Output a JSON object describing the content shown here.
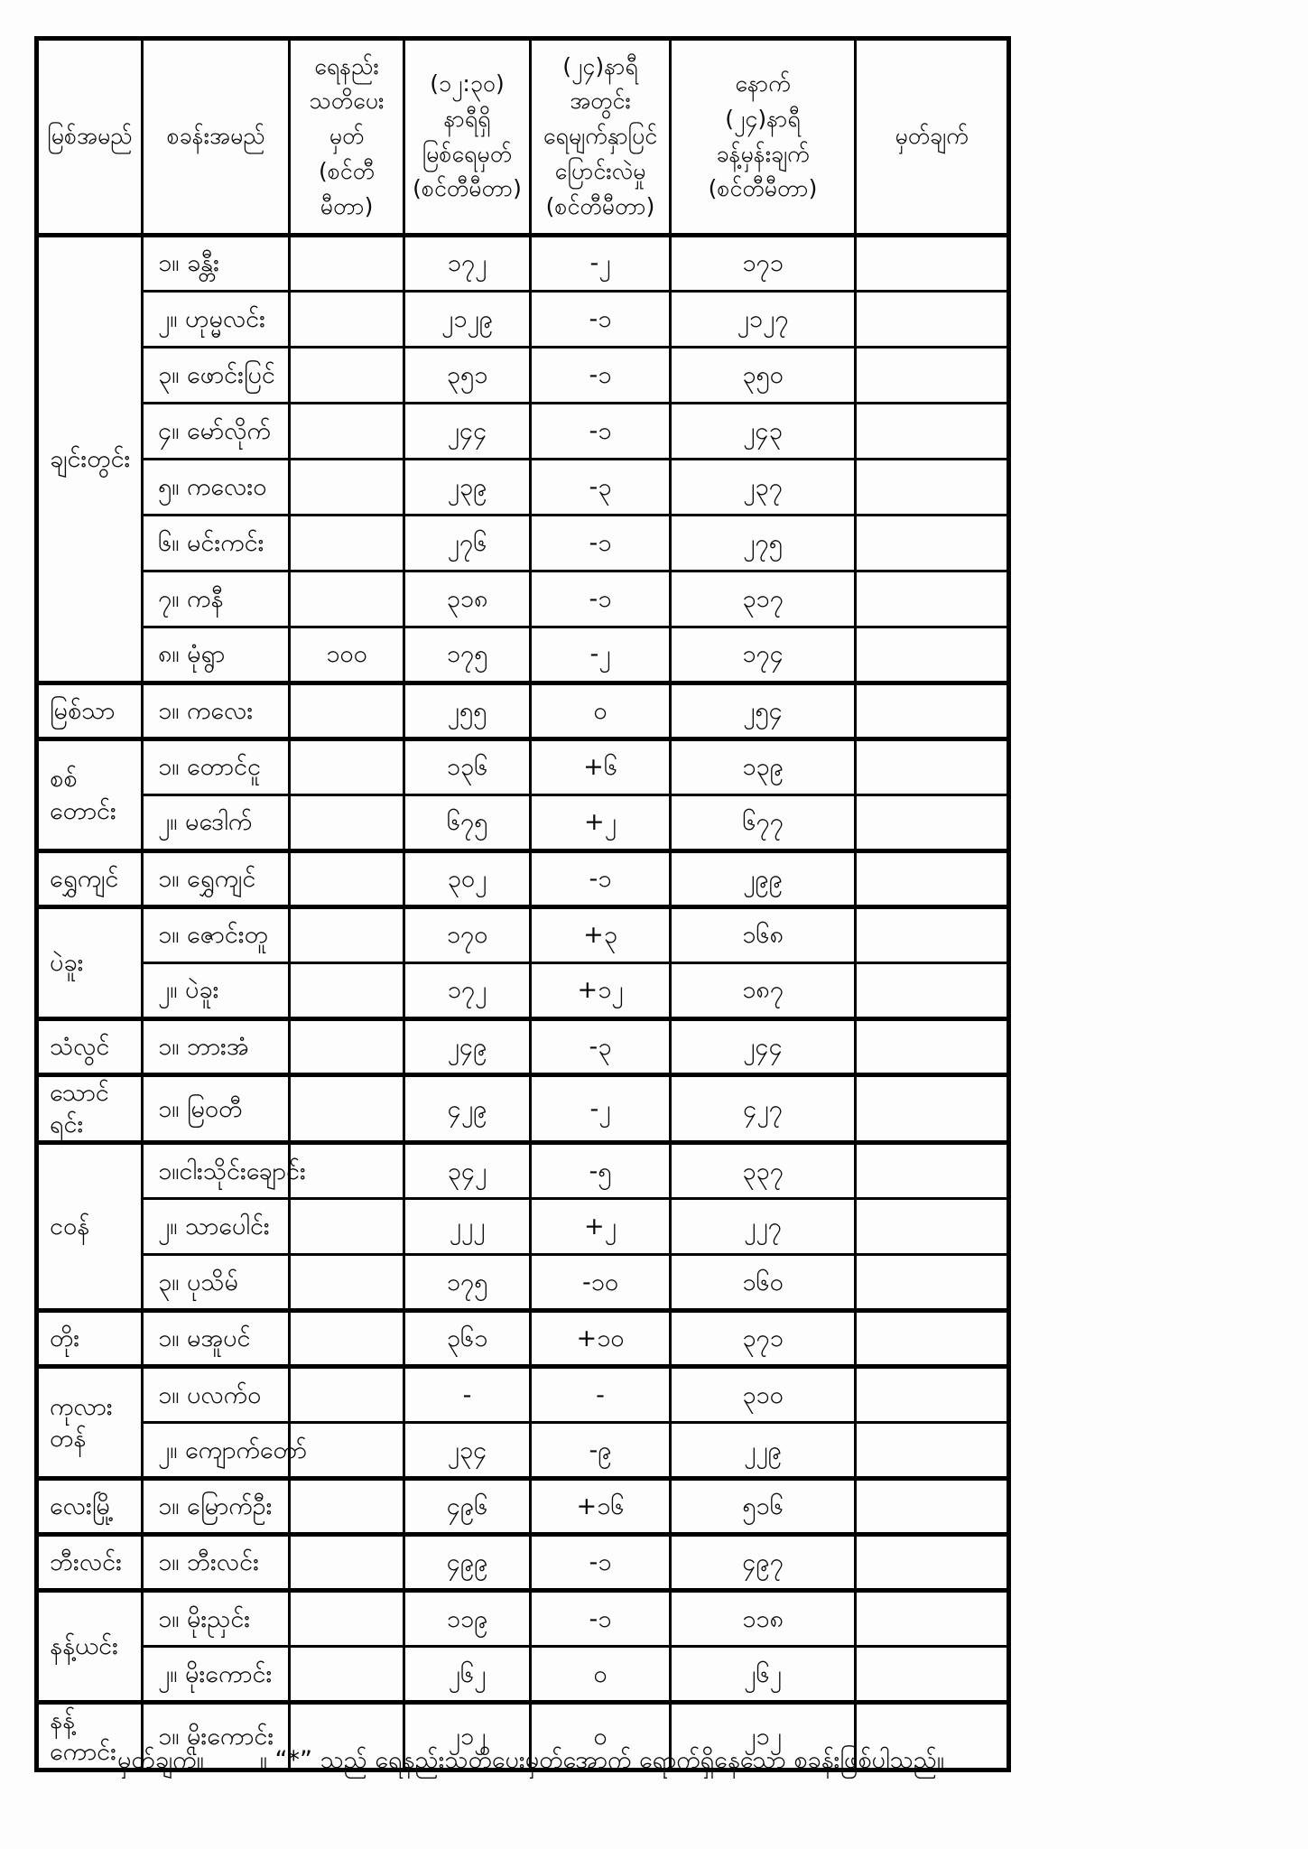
{
  "table": {
    "headers": {
      "river": "မြစ်အမည်",
      "station": "စခန်းအမည်",
      "warning": "ရေနည်း\nသတိပေးမှတ်\n(စင်တီမီတာ)",
      "level": "(၁၂:၃၀)\nနာရီရှိ\nမြစ်ရေမှတ်\n(စင်တီမီတာ)",
      "change": "(၂၄)နာရီအတွင်း\nရေမျက်နှာပြင်\nပြောင်းလဲမှု\n(စင်တီမီတာ)",
      "forecast": "နောက်\n(၂၄)နာရီ\nခန့်မှန်းချက်\n(စင်တီမီတာ)",
      "remark": "မှတ်ချက်"
    },
    "groups": [
      {
        "river": "ချင်းတွင်း",
        "stations": [
          {
            "name": "၁။ ခန္တီး",
            "warning": "",
            "level": "၁၇၂",
            "change": "-၂",
            "forecast": "၁၇၁",
            "remark": ""
          },
          {
            "name": "၂။ ဟုမ္မလင်း",
            "warning": "",
            "level": "၂၁၂၉",
            "change": "-၁",
            "forecast": "၂၁၂၇",
            "remark": ""
          },
          {
            "name": "၃။ ဖောင်းပြင်",
            "warning": "",
            "level": "၃၅၁",
            "change": "-၁",
            "forecast": "၃၅၀",
            "remark": ""
          },
          {
            "name": "၄။ မော်လိုက်",
            "warning": "",
            "level": "၂၄၄",
            "change": "-၁",
            "forecast": "၂၄၃",
            "remark": ""
          },
          {
            "name": "၅။ ကလေးဝ",
            "warning": "",
            "level": "၂၃၉",
            "change": "-၃",
            "forecast": "၂၃၇",
            "remark": ""
          },
          {
            "name": "၆။ မင်းကင်း",
            "warning": "",
            "level": "၂၇၆",
            "change": "-၁",
            "forecast": "၂၇၅",
            "remark": ""
          },
          {
            "name": "၇။ ကနီ",
            "warning": "",
            "level": "၃၁၈",
            "change": "-၁",
            "forecast": "၃၁၇",
            "remark": ""
          },
          {
            "name": "၈။ မုံရွာ",
            "warning": "၁၀၀",
            "level": "၁၇၅",
            "change": "-၂",
            "forecast": "၁၇၄",
            "remark": ""
          }
        ]
      },
      {
        "river": "မြစ်သာ",
        "stations": [
          {
            "name": "၁။ ကလေး",
            "warning": "",
            "level": "၂၅၅",
            "change": "၀",
            "forecast": "၂၅၄",
            "remark": ""
          }
        ]
      },
      {
        "river": "စစ်တောင်း",
        "stations": [
          {
            "name": "၁။ တောင်ငူ",
            "warning": "",
            "level": "၁၃၆",
            "change": "+၆",
            "forecast": "၁၃၉",
            "remark": ""
          },
          {
            "name": "၂။ မဒေါက်",
            "warning": "",
            "level": "၆၇၅",
            "change": "+၂",
            "forecast": "၆၇၇",
            "remark": ""
          }
        ]
      },
      {
        "river": "ရွှေကျင်",
        "stations": [
          {
            "name": "၁။ ရွှေကျင်",
            "warning": "",
            "level": "၃၀၂",
            "change": "-၁",
            "forecast": "၂၉၉",
            "remark": ""
          }
        ]
      },
      {
        "river": "ပဲခူး",
        "stations": [
          {
            "name": "၁။ ဇောင်းတူ",
            "warning": "",
            "level": "၁၇၀",
            "change": "+၃",
            "forecast": "၁၆၈",
            "remark": ""
          },
          {
            "name": "၂။ ပဲခူး",
            "warning": "",
            "level": "၁၇၂",
            "change": "+၁၂",
            "forecast": "၁၈၇",
            "remark": ""
          }
        ]
      },
      {
        "river": "သံလွင်",
        "stations": [
          {
            "name": "၁။ ဘားအံ",
            "warning": "",
            "level": "၂၄၉",
            "change": "-၃",
            "forecast": "၂၄၄",
            "remark": ""
          }
        ]
      },
      {
        "river": "သောင်ရင်း",
        "stations": [
          {
            "name": "၁။ မြဝတီ",
            "warning": "",
            "level": "၄၂၉",
            "change": "-၂",
            "forecast": "၄၂၇",
            "remark": ""
          }
        ]
      },
      {
        "river": "ငဝန်",
        "stations": [
          {
            "name": "၁။ငါးသိုင်းချောင်း",
            "warning": "",
            "level": "၃၄၂",
            "change": "-၅",
            "forecast": "၃၃၇",
            "remark": ""
          },
          {
            "name": "၂။ သာပေါင်း",
            "warning": "",
            "level": "၂၂၂",
            "change": "+၂",
            "forecast": "၂၂၇",
            "remark": ""
          },
          {
            "name": "၃။ ပုသိမ်",
            "warning": "",
            "level": "၁၇၅",
            "change": "-၁၀",
            "forecast": "၁၆၀",
            "remark": ""
          }
        ]
      },
      {
        "river": "တိုး",
        "stations": [
          {
            "name": "၁။ မအူပင်",
            "warning": "",
            "level": "၃၆၁",
            "change": "+၁၀",
            "forecast": "၃၇၁",
            "remark": ""
          }
        ]
      },
      {
        "river": "ကုလားတန်",
        "stations": [
          {
            "name": "၁။ ပလက်ဝ",
            "warning": "",
            "level": "-",
            "change": "-",
            "forecast": "၃၁၀",
            "remark": ""
          },
          {
            "name": "၂။ ကျောက်တော်",
            "warning": "",
            "level": "၂၃၄",
            "change": "-၉",
            "forecast": "၂၂၉",
            "remark": ""
          }
        ]
      },
      {
        "river": "လေးမြို့",
        "stations": [
          {
            "name": "၁။ မြောက်ဦး",
            "warning": "",
            "level": "၄၉၆",
            "change": "+၁၆",
            "forecast": "၅၁၆",
            "remark": ""
          }
        ]
      },
      {
        "river": "ဘီးလင်း",
        "stations": [
          {
            "name": "၁။ ဘီးလင်း",
            "warning": "",
            "level": "၄၉၉",
            "change": "-၁",
            "forecast": "၄၉၇",
            "remark": ""
          }
        ]
      },
      {
        "river": "နန့်ယင်း",
        "stations": [
          {
            "name": "၁။ မိုးညှင်း",
            "warning": "",
            "level": "၁၁၉",
            "change": "-၁",
            "forecast": "၁၁၈",
            "remark": ""
          },
          {
            "name": "၂။ မိုးကောင်း",
            "warning": "",
            "level": "၂၆၂",
            "change": "၀",
            "forecast": "၂၆၂",
            "remark": ""
          }
        ]
      },
      {
        "river": "နန့်ကောင်း",
        "stations": [
          {
            "name": "၁။ မိုးကောင်း",
            "warning": "",
            "level": "၂၁၂",
            "change": "၀",
            "forecast": "၂၁၂",
            "remark": ""
          }
        ]
      }
    ],
    "footer": {
      "label": "မှတ်ချက်။",
      "text": "။ “*” သည် ရေနည်းသတိပေးမှတ်အောက် ရောက်ရှိနေသော စခန်းဖြစ်ပါသည်။"
    }
  }
}
